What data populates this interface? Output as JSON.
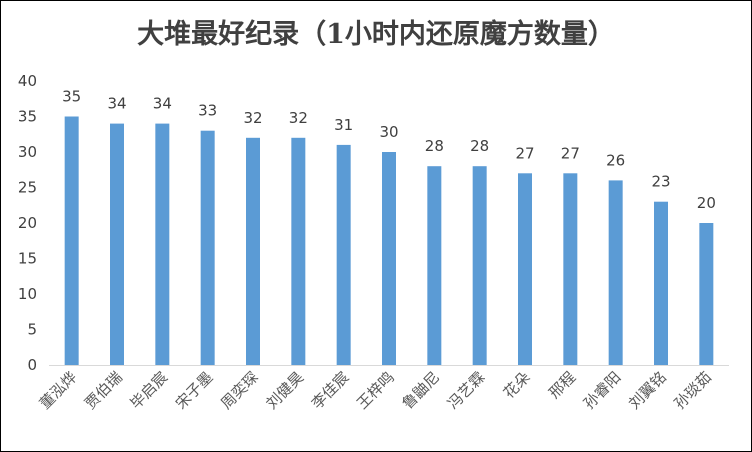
{
  "chart_data": {
    "type": "bar",
    "title": "大堆最好纪录（1小时内还原魔方数量）",
    "xlabel": "",
    "ylabel": "",
    "categories": [
      "董泓烨",
      "贾伯瑞",
      "毕启宸",
      "宋子墨",
      "周奕琛",
      "刘健昊",
      "李佳宸",
      "王梓鸣",
      "鲁鼬尼",
      "冯艺霖",
      "花朵",
      "邢程",
      "孙睿阳",
      "刘翼铭",
      "孙琰茹"
    ],
    "values": [
      35,
      34,
      34,
      33,
      32,
      32,
      31,
      30,
      28,
      28,
      27,
      27,
      26,
      23,
      20
    ],
    "ylim": [
      0,
      40
    ],
    "yticks": [
      0,
      5,
      10,
      15,
      20,
      25,
      30,
      35,
      40
    ],
    "grid": false,
    "legend": "none",
    "data_labels": true,
    "colors": {
      "bar": "#5b9bd5",
      "axis": "#d9d9d9",
      "text": "#404040"
    }
  }
}
